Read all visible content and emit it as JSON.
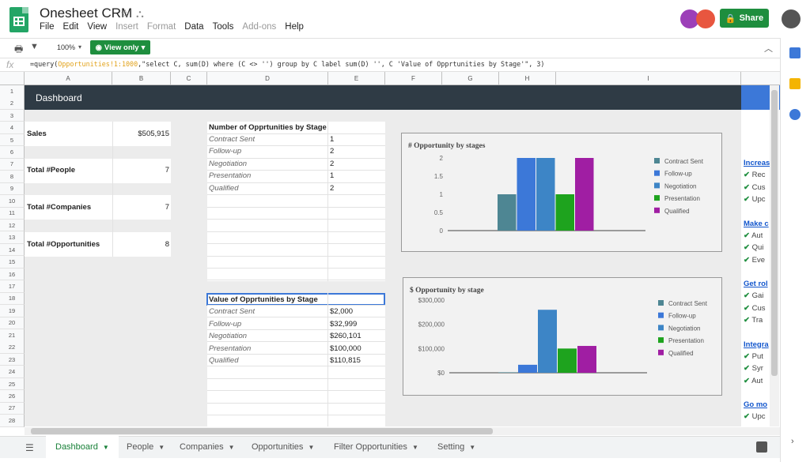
{
  "app": {
    "title": "Onesheet CRM",
    "menu": [
      "File",
      "Edit",
      "View",
      "Insert",
      "Format",
      "Data",
      "Tools",
      "Add-ons",
      "Help"
    ],
    "disabled_menu": [
      "Insert",
      "Format",
      "Add-ons"
    ],
    "share_label": "Share",
    "zoom": "100%",
    "view_only_label": "View only"
  },
  "formula": {
    "prefix": "=query(",
    "ref": "Opportunities!1:1000",
    "rest": ",\"select C, sum(D) where (C <> '') group by C label sum(D) '', C 'Value of Opprtunities by Stage'\", 3)"
  },
  "columns": [
    "A",
    "B",
    "C",
    "D",
    "E",
    "F",
    "G",
    "H",
    "I"
  ],
  "rows": [
    "1",
    "2",
    "3",
    "4",
    "5",
    "6",
    "7",
    "8",
    "9",
    "10",
    "11",
    "12",
    "13",
    "14",
    "15",
    "16",
    "17",
    "18",
    "19",
    "20",
    "21",
    "22",
    "23",
    "24",
    "25",
    "26",
    "27",
    "28"
  ],
  "dashboard": {
    "banner": "Dashboard",
    "metrics": [
      {
        "label": "Sales",
        "value": "$505,915"
      },
      {
        "label": "Total #People",
        "value": "7"
      },
      {
        "label": "Total #Companies",
        "value": "7"
      },
      {
        "label": "Total #Opportunities",
        "value": "8"
      }
    ],
    "count_table": {
      "title": "Number of Opprtunities by Stage",
      "rows": [
        {
          "stage": "Contract Sent",
          "value": "1"
        },
        {
          "stage": "Follow-up",
          "value": "2"
        },
        {
          "stage": "Negotiation",
          "value": "2"
        },
        {
          "stage": "Presentation",
          "value": "1"
        },
        {
          "stage": "Qualified",
          "value": "2"
        }
      ]
    },
    "value_table": {
      "title": "Value of Opprtunities by Stage",
      "rows": [
        {
          "stage": "Contract Sent",
          "value": "$2,000"
        },
        {
          "stage": "Follow-up",
          "value": "$32,999"
        },
        {
          "stage": "Negotiation",
          "value": "$260,101"
        },
        {
          "stage": "Presentation",
          "value": "$100,000"
        },
        {
          "stage": "Qualified",
          "value": "$110,815"
        }
      ]
    },
    "side_links": [
      {
        "title": "Increas",
        "items": [
          "Rec",
          "Cus",
          "Upc"
        ]
      },
      {
        "title": "Make c",
        "items": [
          "Aut",
          "Qui",
          "Eve"
        ]
      },
      {
        "title": "Get rol",
        "items": [
          "Gai",
          "Cus",
          "Tra"
        ]
      },
      {
        "title": "Integra",
        "items": [
          "Put",
          "Syr",
          "Aut"
        ]
      },
      {
        "title": "Go mo",
        "items": [
          "Upc"
        ]
      }
    ]
  },
  "chart_data": [
    {
      "type": "bar",
      "title": "# Opportunity by stages",
      "categories": [
        "Contract Sent",
        "Follow-up",
        "Negotiation",
        "Presentation",
        "Qualified"
      ],
      "values": [
        1,
        2,
        2,
        1,
        2
      ],
      "colors": [
        "#4e8693",
        "#3c78d8",
        "#3d85c6",
        "#1ea31e",
        "#a01ea3"
      ],
      "yticks": [
        "0",
        "0.5",
        "1",
        "1.5",
        "2"
      ],
      "ylim": [
        0,
        2
      ],
      "legend": "right"
    },
    {
      "type": "bar",
      "title": "$ Opportunity by stage",
      "categories": [
        "Contract Sent",
        "Follow-up",
        "Negotiation",
        "Presentation",
        "Qualified"
      ],
      "values": [
        2000,
        32999,
        260101,
        100000,
        110815
      ],
      "colors": [
        "#4e8693",
        "#3c78d8",
        "#3d85c6",
        "#1ea31e",
        "#a01ea3"
      ],
      "yticks": [
        "$0",
        "$100,000",
        "$200,000",
        "$300,000"
      ],
      "ylim": [
        0,
        300000
      ],
      "legend": "right"
    }
  ],
  "tabs": [
    {
      "label": "Dashboard",
      "active": true
    },
    {
      "label": "People"
    },
    {
      "label": "Companies"
    },
    {
      "label": "Opportunities"
    },
    {
      "label": "Filter Opportunities"
    },
    {
      "label": "Setting"
    }
  ],
  "colors": {
    "banner": "#2f3b45",
    "accent_green": "#1e8e3e",
    "panel_blue": "#3c78d8"
  }
}
